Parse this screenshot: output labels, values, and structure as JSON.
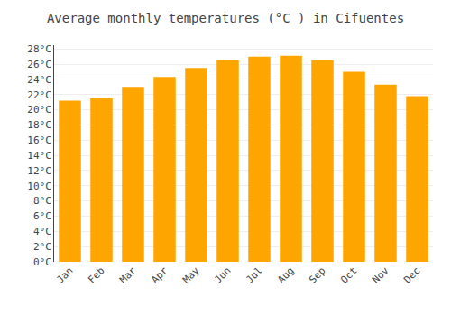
{
  "chart_data": {
    "type": "bar",
    "title": "Average monthly temperatures (°C ) in Cifuentes",
    "categories": [
      "Jan",
      "Feb",
      "Mar",
      "Apr",
      "May",
      "Jun",
      "Jul",
      "Aug",
      "Sep",
      "Oct",
      "Nov",
      "Dec"
    ],
    "values": [
      21.2,
      21.5,
      23.0,
      24.3,
      25.5,
      26.5,
      27.0,
      27.1,
      26.5,
      25.0,
      23.3,
      21.8
    ],
    "color": "#FFA500",
    "ylim": [
      0,
      28.5
    ],
    "yticks": [
      {
        "value": 0,
        "label": "0°C"
      },
      {
        "value": 2,
        "label": "2°C"
      },
      {
        "value": 4,
        "label": "4°C"
      },
      {
        "value": 6,
        "label": "6°C"
      },
      {
        "value": 8,
        "label": "8°C"
      },
      {
        "value": 10,
        "label": "10°C"
      },
      {
        "value": 12,
        "label": "12°C"
      },
      {
        "value": 14,
        "label": "14°C"
      },
      {
        "value": 16,
        "label": "16°C"
      },
      {
        "value": 18,
        "label": "18°C"
      },
      {
        "value": 20,
        "label": "20°C"
      },
      {
        "value": 22,
        "label": "22°C"
      },
      {
        "value": 24,
        "label": "24°C"
      },
      {
        "value": 26,
        "label": "26°C"
      },
      {
        "value": 28,
        "label": "28°C"
      }
    ],
    "grid": true
  }
}
